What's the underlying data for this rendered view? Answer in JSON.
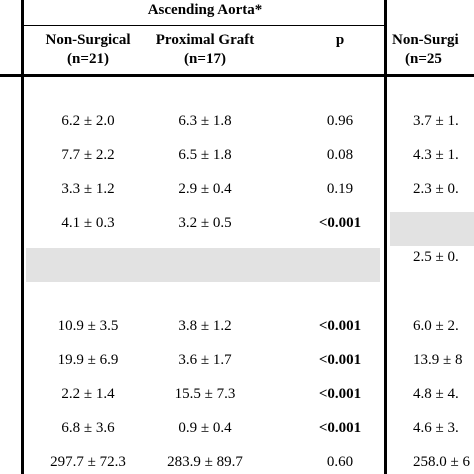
{
  "header": {
    "group": "Ascending Aorta*",
    "columns": [
      {
        "name": "Non-Surgical",
        "n": "(n=21)"
      },
      {
        "name": "Proximal Graft",
        "n": "(n=17)"
      },
      {
        "name": "p"
      },
      {
        "name": "Non-Surgi",
        "n": "(n=25"
      }
    ]
  },
  "table": {
    "rows": [
      {
        "cells": [
          "6.2 ± 2.0",
          "6.3 ± 1.8",
          "0.96",
          "3.7 ± 1."
        ]
      },
      {
        "cells": [
          "7.7 ± 2.2",
          "6.5 ± 1.8",
          "0.08",
          "4.3 ± 1."
        ]
      },
      {
        "cells": [
          "3.3 ± 1.2",
          "2.9 ± 0.4",
          "0.19",
          "2.3 ± 0."
        ]
      },
      {
        "cells": [
          "4.1 ± 0.3",
          "3.2 ± 0.5",
          "<0.001",
          null
        ],
        "p_bold": true
      },
      {
        "cells": [
          null,
          null,
          null,
          "2.5 ± 0."
        ]
      },
      {
        "cells": [
          null,
          null,
          null,
          null
        ]
      },
      {
        "cells": [
          "10.9 ± 3.5",
          "3.8 ± 1.2",
          "<0.001",
          "6.0 ± 2."
        ],
        "p_bold": true
      },
      {
        "cells": [
          "19.9 ± 6.9",
          "3.6 ± 1.7",
          "<0.001",
          "13.9 ± 8"
        ],
        "p_bold": true
      },
      {
        "cells": [
          "2.2 ± 1.4",
          "15.5 ± 7.3",
          "<0.001",
          "4.8 ± 4."
        ],
        "p_bold": true
      },
      {
        "cells": [
          "6.8 ± 3.6",
          "0.9 ± 0.4",
          "<0.001",
          "4.6 ± 3."
        ],
        "p_bold": true
      },
      {
        "cells": [
          "297.7 ± 72.3",
          "283.9 ± 89.7",
          "0.60",
          "258.0 ± 6"
        ]
      }
    ]
  }
}
